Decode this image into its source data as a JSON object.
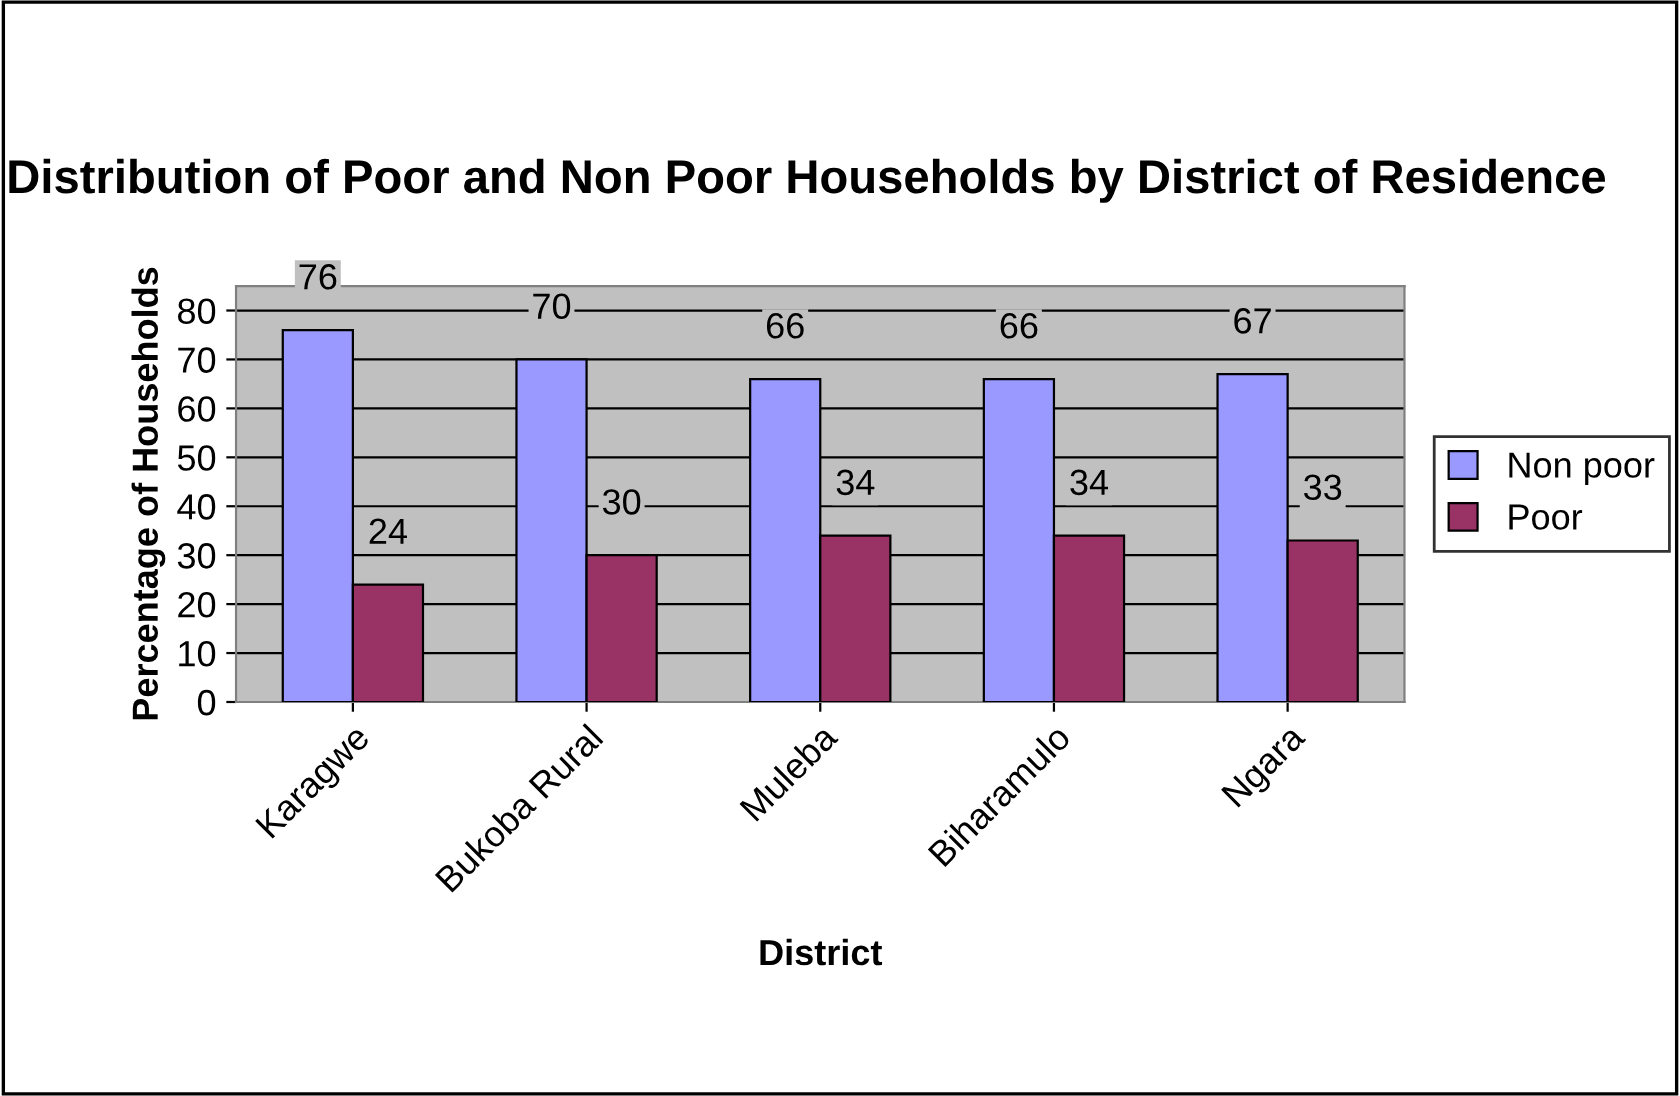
{
  "chart_data": {
    "type": "bar",
    "title": "Distribution of Poor and Non Poor Households by District of Residence",
    "xlabel": "District",
    "ylabel": "Percentage of Households",
    "categories": [
      "Karagwe",
      "Bukoba Rural",
      "Muleba",
      "Biharamulo",
      "Ngara"
    ],
    "series": [
      {
        "name": "Non poor",
        "color": "#9999ff",
        "values": [
          76,
          70,
          66,
          66,
          67
        ]
      },
      {
        "name": "Poor",
        "color": "#993366",
        "values": [
          24,
          30,
          34,
          34,
          33
        ]
      }
    ],
    "ylim": [
      0,
      85
    ],
    "yticks": [
      0,
      10,
      20,
      30,
      40,
      50,
      60,
      70,
      80
    ],
    "grid": "y",
    "legend": "right",
    "data_labels": true
  }
}
